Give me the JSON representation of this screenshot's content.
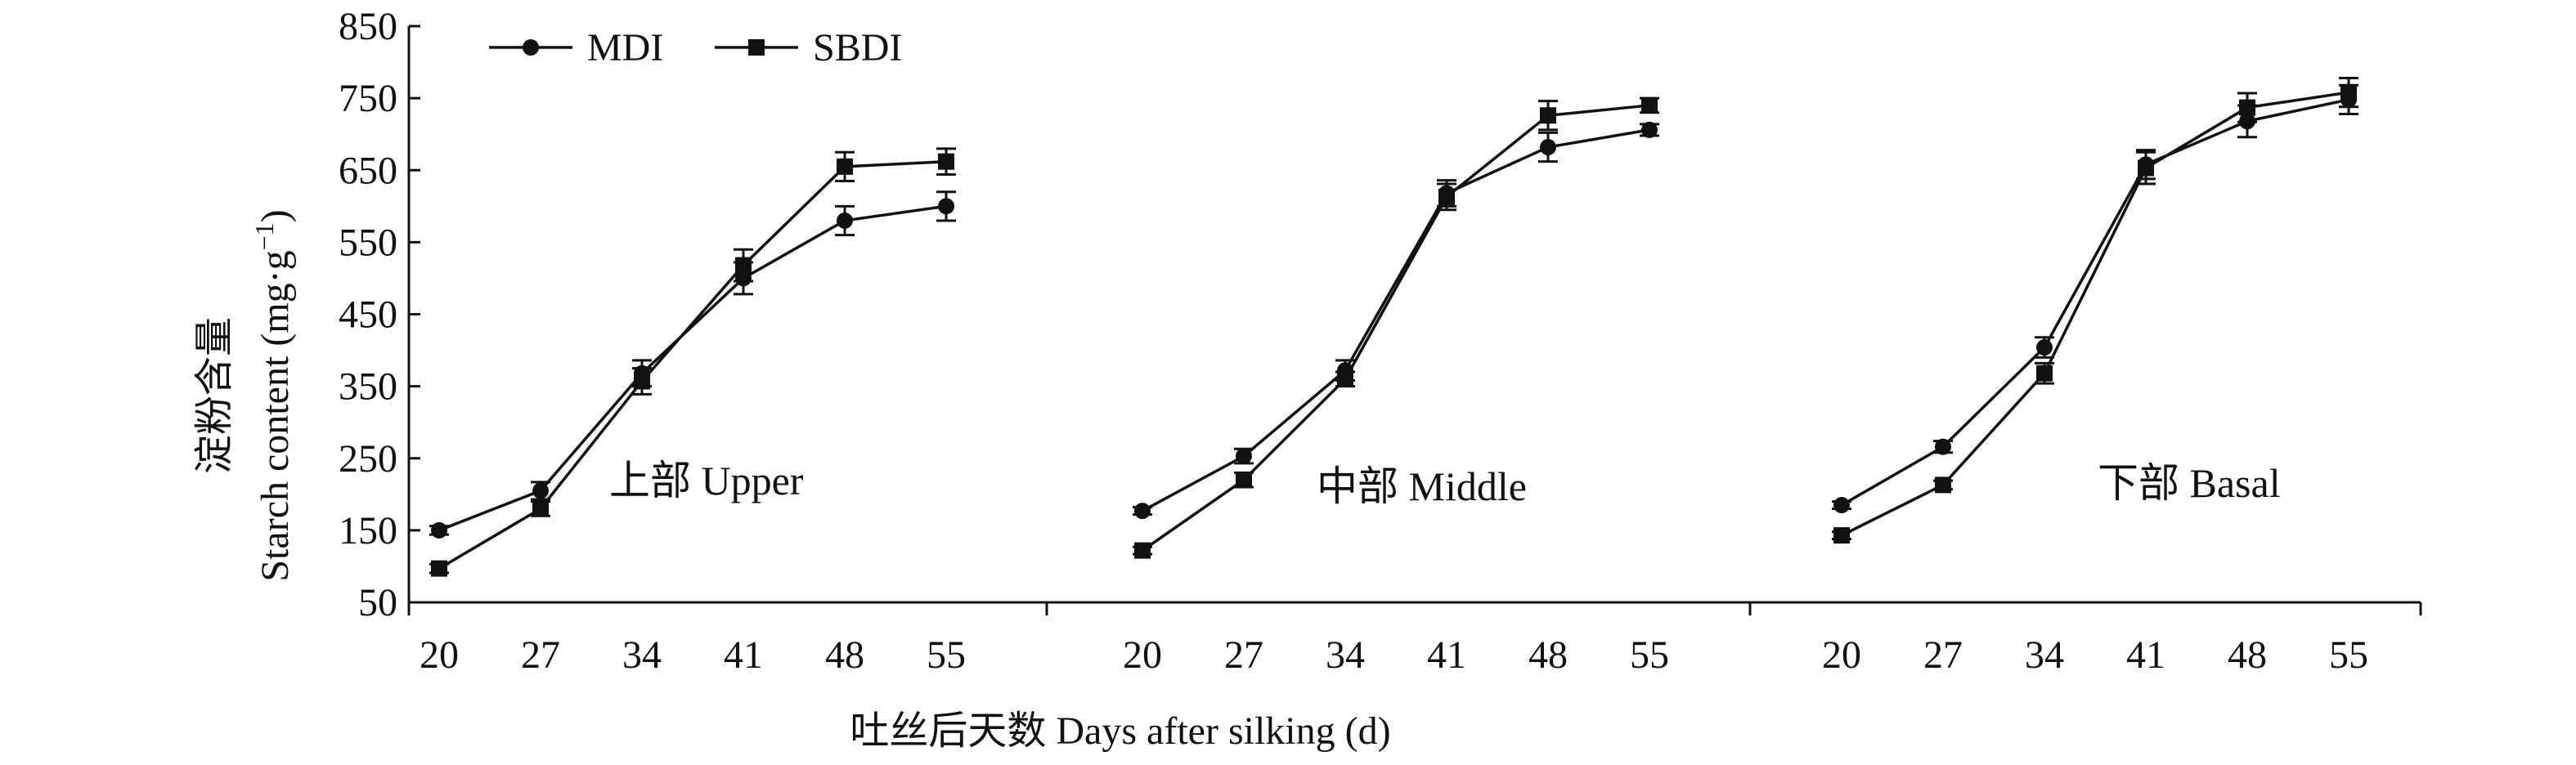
{
  "chart_data": {
    "type": "line",
    "title": "",
    "ylabel_zh": "淀粉含量",
    "ylabel_en": "Starch content (mg·g",
    "ylabel_sup": "−1",
    "ylabel_close": ")",
    "xlabel": "吐丝后天数 Days after silking (d)",
    "ylim": [
      50,
      850
    ],
    "yticks": [
      50,
      150,
      250,
      350,
      450,
      550,
      650,
      750,
      850
    ],
    "x": [
      "20",
      "27",
      "34",
      "41",
      "48",
      "55"
    ],
    "grid": false,
    "legend_position": "top-left",
    "colors": {
      "line": "#111111",
      "marker": "#111111"
    },
    "series": [
      {
        "name": "MDI",
        "marker": "circle"
      },
      {
        "name": "SBDI",
        "marker": "square"
      }
    ],
    "panels": [
      {
        "label": "上部 Upper",
        "MDI": {
          "values": [
            150,
            205,
            368,
            500,
            580,
            600
          ],
          "errors": [
            6,
            12,
            18,
            22,
            20,
            20
          ]
        },
        "SBDI": {
          "values": [
            97,
            180,
            357,
            518,
            655,
            662
          ],
          "errors": [
            6,
            10,
            18,
            22,
            20,
            18
          ]
        }
      },
      {
        "label": "中部 Middle",
        "MDI": {
          "values": [
            177,
            253,
            372,
            618,
            682,
            706
          ],
          "errors": [
            5,
            10,
            14,
            18,
            20,
            8
          ]
        },
        "SBDI": {
          "values": [
            122,
            220,
            360,
            613,
            726,
            740
          ],
          "errors": [
            5,
            10,
            10,
            18,
            20,
            10
          ]
        }
      },
      {
        "label": "下部 Basal",
        "MDI": {
          "values": [
            185,
            266,
            404,
            658,
            718,
            748
          ],
          "errors": [
            5,
            8,
            14,
            20,
            22,
            20
          ]
        },
        "SBDI": {
          "values": [
            143,
            213,
            368,
            653,
            737,
            758
          ],
          "errors": [
            5,
            6,
            14,
            22,
            20,
            20
          ]
        }
      }
    ]
  }
}
